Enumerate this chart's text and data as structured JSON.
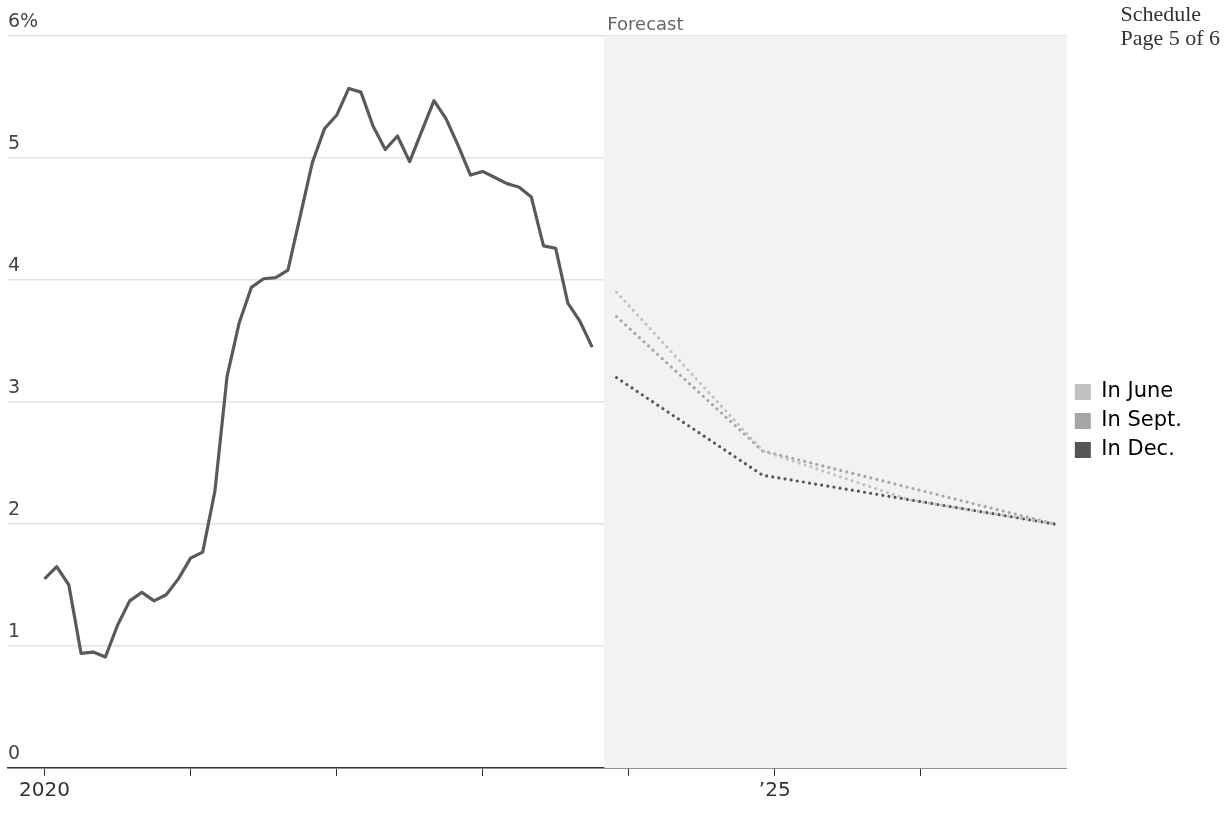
{
  "chart_data": {
    "type": "line",
    "annotations": [
      "Schedule",
      "Page 5 of 6"
    ],
    "xlim": [
      "2019-10",
      "2027"
    ],
    "xticks": [
      {
        "value": "2020",
        "label": "2020"
      },
      {
        "value": "2021",
        "label": null
      },
      {
        "value": "2022",
        "label": null
      },
      {
        "value": "2023",
        "label": null
      },
      {
        "value": "2024",
        "label": null
      },
      {
        "value": "2025",
        "label": "’25"
      },
      {
        "value": "2026",
        "label": null
      }
    ],
    "ylim": [
      0,
      6
    ],
    "yticks": [
      0,
      1,
      2,
      3,
      4,
      5,
      {
        "value": 6,
        "label": "6%"
      }
    ],
    "grid": "y",
    "legend": "right",
    "marker": "none",
    "bands": [
      {
        "axis": "x",
        "from": "2023-11",
        "to": "2027",
        "label": "Forecast",
        "color": "#f2f2f2"
      }
    ],
    "series": [
      {
        "color": "#5a5a5a",
        "line_style": "solid",
        "x": [
          "2020-01",
          "2020-02",
          "2020-03",
          "2020-04",
          "2020-05",
          "2020-06",
          "2020-07",
          "2020-08",
          "2020-09",
          "2020-10",
          "2020-11",
          "2020-12",
          "2021-01",
          "2021-02",
          "2021-03",
          "2021-04",
          "2021-05",
          "2021-06",
          "2021-07",
          "2021-08",
          "2021-09",
          "2021-10",
          "2021-11",
          "2021-12",
          "2022-01",
          "2022-02",
          "2022-03",
          "2022-04",
          "2022-05",
          "2022-06",
          "2022-07",
          "2022-08",
          "2022-09",
          "2022-10",
          "2022-11",
          "2022-12",
          "2023-01",
          "2023-02",
          "2023-03",
          "2023-04",
          "2023-05",
          "2023-06",
          "2023-07",
          "2023-08",
          "2023-09",
          "2023-10"
        ],
        "values": [
          1.55,
          1.65,
          1.5,
          0.94,
          0.95,
          0.91,
          1.17,
          1.37,
          1.44,
          1.37,
          1.42,
          1.55,
          1.72,
          1.77,
          2.27,
          3.21,
          3.65,
          3.94,
          4.01,
          4.02,
          4.08,
          4.52,
          4.96,
          5.24,
          5.35,
          5.57,
          5.54,
          5.26,
          5.07,
          5.18,
          4.97,
          5.22,
          5.47,
          5.32,
          5.1,
          4.86,
          4.89,
          4.84,
          4.79,
          4.76,
          4.68,
          4.28,
          4.26,
          3.81,
          3.66,
          3.45
        ]
      },
      {
        "name": "In June",
        "color": "#c2c2c2",
        "line_style": "dotted",
        "x": [
          "2023-12",
          "2024-12",
          "2025-12",
          "2026-12"
        ],
        "values": [
          3.9,
          2.6,
          2.2,
          2.0
        ]
      },
      {
        "name": "In Sept.",
        "color": "#a6a6a6",
        "line_style": "dotted",
        "x": [
          "2023-12",
          "2024-12",
          "2025-12",
          "2026-12"
        ],
        "values": [
          3.7,
          2.6,
          2.3,
          2.0
        ]
      },
      {
        "name": "In Dec.",
        "color": "#555555",
        "line_style": "dotted",
        "x": [
          "2023-12",
          "2024-12",
          "2025-12",
          "2026-12"
        ],
        "values": [
          3.2,
          2.4,
          2.2,
          2.0
        ]
      }
    ]
  }
}
